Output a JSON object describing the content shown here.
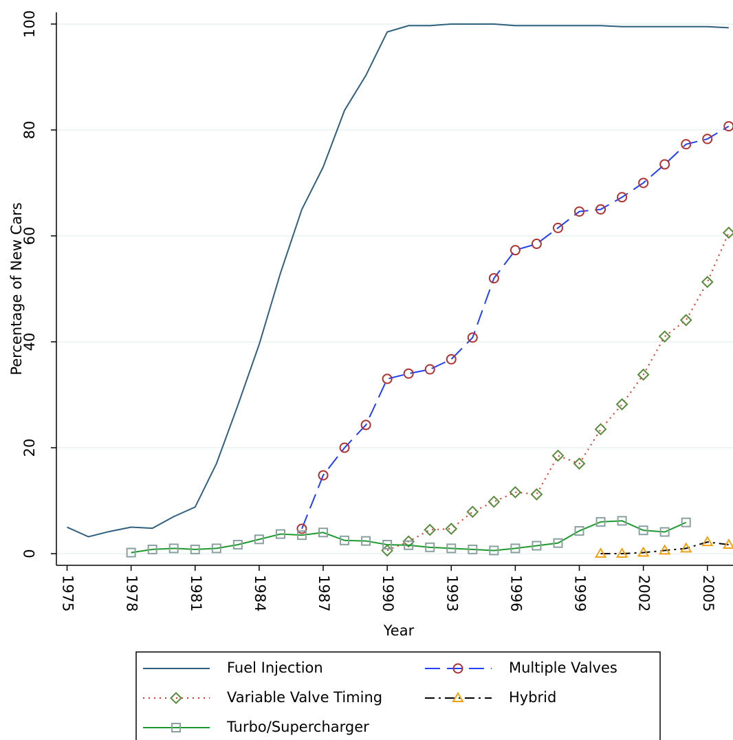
{
  "chart_data": {
    "type": "line",
    "x_label": "Year",
    "y_label": "Percentage of New Cars",
    "x": [
      1975,
      1976,
      1977,
      1978,
      1979,
      1980,
      1981,
      1982,
      1983,
      1984,
      1985,
      1986,
      1987,
      1988,
      1989,
      1990,
      1991,
      1992,
      1993,
      1994,
      1995,
      1996,
      1997,
      1998,
      1999,
      2000,
      2001,
      2002,
      2003,
      2004,
      2005,
      2006
    ],
    "xlim": [
      1974.5,
      2006.2
    ],
    "ylim": [
      -2.2,
      102.2
    ],
    "xticks": [
      1975,
      1978,
      1981,
      1984,
      1987,
      1990,
      1993,
      1996,
      1999,
      2002,
      2005
    ],
    "yticks": [
      0,
      20,
      40,
      60,
      80,
      100
    ],
    "grid": true,
    "series": [
      {
        "name": "Fuel Injection",
        "color": "#2f5f7f",
        "dash": "none",
        "marker": "none",
        "values": [
          5,
          3.2,
          4.2,
          5,
          4.8,
          7,
          8.8,
          17,
          28,
          39.5,
          53,
          65,
          73,
          83.7,
          90.3,
          98.5,
          99.7,
          99.7,
          100,
          100,
          100,
          99.7,
          99.7,
          99.7,
          99.7,
          99.7,
          99.5,
          99.5,
          99.5,
          99.5,
          99.5,
          99.3
        ]
      },
      {
        "name": "Multiple Valves",
        "color": "#1f3fff",
        "dash": "22,10",
        "marker": "circle",
        "marker_color": "#b03030",
        "values": [
          null,
          null,
          null,
          null,
          null,
          null,
          null,
          null,
          null,
          null,
          null,
          4.7,
          14.8,
          20,
          24.3,
          33,
          34,
          34.8,
          36.7,
          40.8,
          52,
          57.3,
          58.5,
          61.5,
          64.6,
          65,
          67.3,
          70,
          73.5,
          77.3,
          78.3,
          80.7
        ]
      },
      {
        "name": "Variable Valve Timing",
        "color": "#e03020",
        "dash": "2,6",
        "marker": "diamond",
        "marker_color": "#5a8a3a",
        "values": [
          null,
          null,
          null,
          null,
          null,
          null,
          null,
          null,
          null,
          null,
          null,
          null,
          null,
          null,
          null,
          0.6,
          2.3,
          4.5,
          4.7,
          7.9,
          9.8,
          11.6,
          11.2,
          18.5,
          17,
          23.5,
          28.2,
          33.8,
          41,
          44.1,
          51.3,
          60.6
        ]
      },
      {
        "name": "Hybrid",
        "color": "#000000",
        "dash": "14,6,3,6",
        "marker": "triangle",
        "marker_color": "#f0a010",
        "values": [
          null,
          null,
          null,
          null,
          null,
          null,
          null,
          null,
          null,
          null,
          null,
          null,
          null,
          null,
          null,
          null,
          null,
          null,
          null,
          null,
          null,
          null,
          null,
          null,
          null,
          0,
          0,
          0.2,
          0.6,
          1,
          2.2,
          1.7
        ]
      },
      {
        "name": "Turbo/Supercharger",
        "color": "#1a9a2a",
        "dash": "none",
        "marker": "square",
        "marker_color": "#8aa0a0",
        "values": [
          null,
          null,
          null,
          0.2,
          0.8,
          1,
          0.8,
          1,
          1.7,
          2.7,
          3.7,
          3.5,
          4,
          2.5,
          2.4,
          1.7,
          1.6,
          1.2,
          1,
          0.8,
          0.6,
          1,
          1.5,
          2,
          4.3,
          6,
          6.2,
          4.4,
          4.1,
          5.9,
          null,
          null
        ]
      }
    ]
  }
}
